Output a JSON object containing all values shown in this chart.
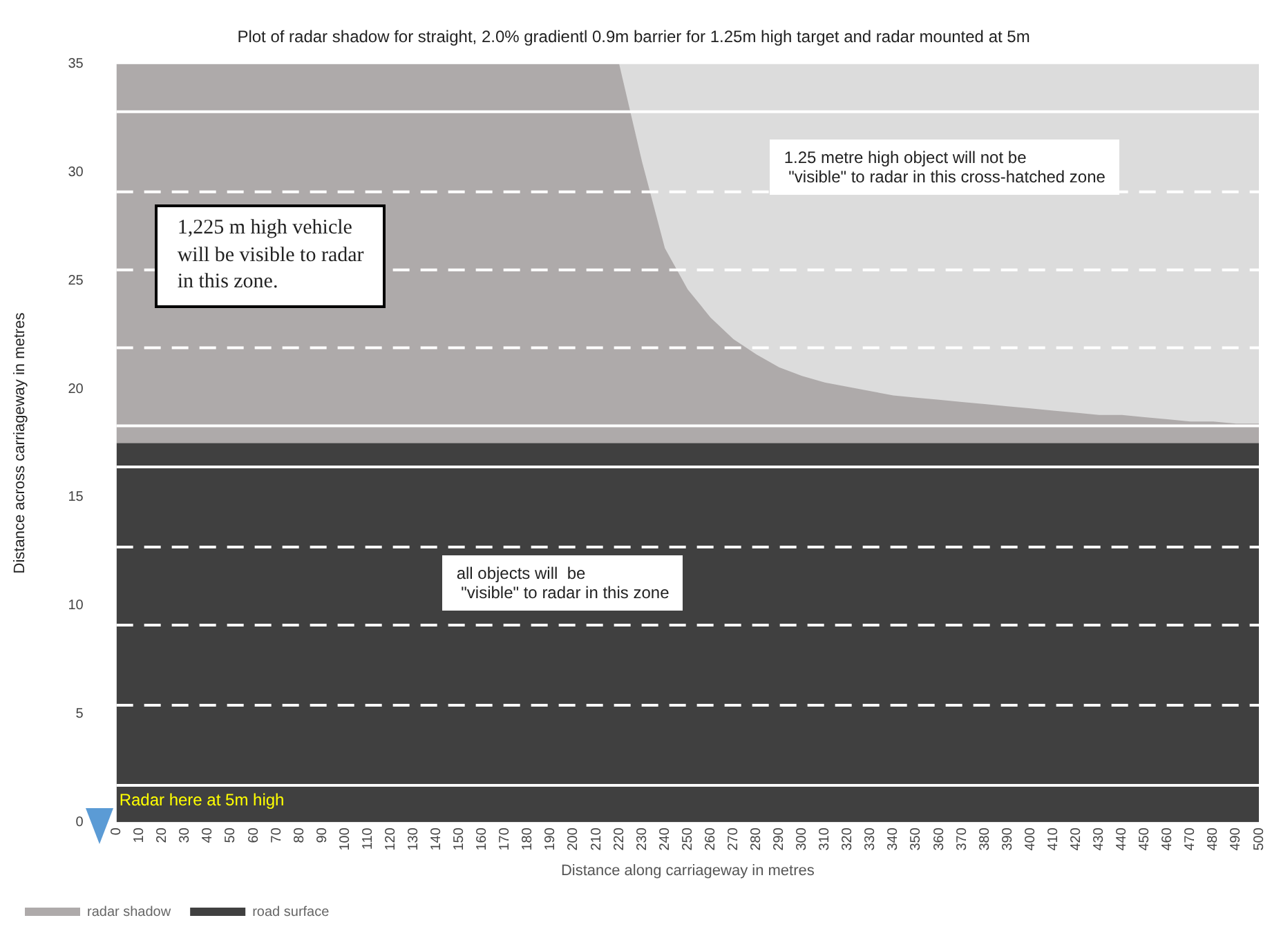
{
  "chart_data": {
    "type": "area",
    "title": "Plot of radar shadow for straight, 2.0% gradientl 0.9m barrier for 1.25m high target and radar mounted at 5m",
    "xlabel": "Distance along carriageway in metres",
    "ylabel": "Distance across carriageway in metres",
    "categories": [
      "0",
      "10",
      "20",
      "30",
      "40",
      "50",
      "60",
      "70",
      "80",
      "90",
      "100",
      "110",
      "120",
      "130",
      "140",
      "150",
      "160",
      "170",
      "180",
      "190",
      "200",
      "210",
      "220",
      "230",
      "240",
      "250",
      "260",
      "270",
      "280",
      "290",
      "300",
      "310",
      "320",
      "330",
      "340",
      "350",
      "360",
      "370",
      "380",
      "390",
      "400",
      "410",
      "420",
      "430",
      "440",
      "450",
      "460",
      "470",
      "480",
      "490",
      "500"
    ],
    "stacked": true,
    "series": [
      {
        "name": "road surface",
        "color": "#404040",
        "values": [
          17.5,
          17.5,
          17.5,
          17.5,
          17.5,
          17.5,
          17.5,
          17.5,
          17.5,
          17.5,
          17.5,
          17.5,
          17.5,
          17.5,
          17.5,
          17.5,
          17.5,
          17.5,
          17.5,
          17.5,
          17.5,
          17.5,
          17.5,
          17.5,
          17.5,
          17.5,
          17.5,
          17.5,
          17.5,
          17.5,
          17.5,
          17.5,
          17.5,
          17.5,
          17.5,
          17.5,
          17.5,
          17.5,
          17.5,
          17.5,
          17.5,
          17.5,
          17.5,
          17.5,
          17.5,
          17.5,
          17.5,
          17.5,
          17.5,
          17.5,
          17.5
        ]
      },
      {
        "name": "radar shadow",
        "color": "#aeaaaa",
        "values": [
          17.5,
          17.5,
          17.5,
          17.5,
          17.5,
          17.5,
          17.5,
          17.5,
          17.5,
          17.5,
          17.5,
          17.5,
          17.5,
          17.5,
          17.5,
          17.5,
          17.5,
          17.5,
          17.5,
          17.5,
          17.5,
          17.5,
          17.5,
          13.0,
          9.0,
          7.1,
          5.8,
          4.8,
          4.1,
          3.5,
          3.1,
          2.8,
          2.6,
          2.4,
          2.2,
          2.1,
          2.0,
          1.9,
          1.8,
          1.7,
          1.6,
          1.5,
          1.4,
          1.3,
          1.3,
          1.2,
          1.1,
          1.0,
          1.0,
          0.9,
          0.9
        ]
      }
    ],
    "ylim": [
      0,
      35
    ],
    "yticks": [
      0,
      5,
      10,
      15,
      20,
      25,
      30,
      35
    ],
    "grid": false,
    "legend": "bottom left",
    "ref_lines": [
      {
        "axis": "y",
        "value": 32.8,
        "color": "#ffffff",
        "line_style": "solid"
      },
      {
        "axis": "y",
        "value": 29.1,
        "color": "#ffffff",
        "line_style": "dashed"
      },
      {
        "axis": "y",
        "value": 25.5,
        "color": "#ffffff",
        "line_style": "dashed"
      },
      {
        "axis": "y",
        "value": 21.9,
        "color": "#ffffff",
        "line_style": "dashed"
      },
      {
        "axis": "y",
        "value": 18.3,
        "color": "#ffffff",
        "line_style": "solid"
      },
      {
        "axis": "y",
        "value": 16.4,
        "color": "#ffffff",
        "line_style": "solid"
      },
      {
        "axis": "y",
        "value": 12.7,
        "color": "#ffffff",
        "line_style": "dashed"
      },
      {
        "axis": "y",
        "value": 9.1,
        "color": "#ffffff",
        "line_style": "dashed"
      },
      {
        "axis": "y",
        "value": 5.4,
        "color": "#ffffff",
        "line_style": "dashed"
      },
      {
        "axis": "y",
        "value": 1.7,
        "color": "#ffffff",
        "line_style": "solid"
      }
    ],
    "annotations": [
      "1,225 m high vehicle\nwill be visible to radar\nin this zone.",
      "1.25 metre high object will not be\n \"visible\" to radar in this cross-hatched zone",
      "all objects will  be\n \"visible\" to radar in this zone",
      "Radar here at 5m high"
    ]
  }
}
